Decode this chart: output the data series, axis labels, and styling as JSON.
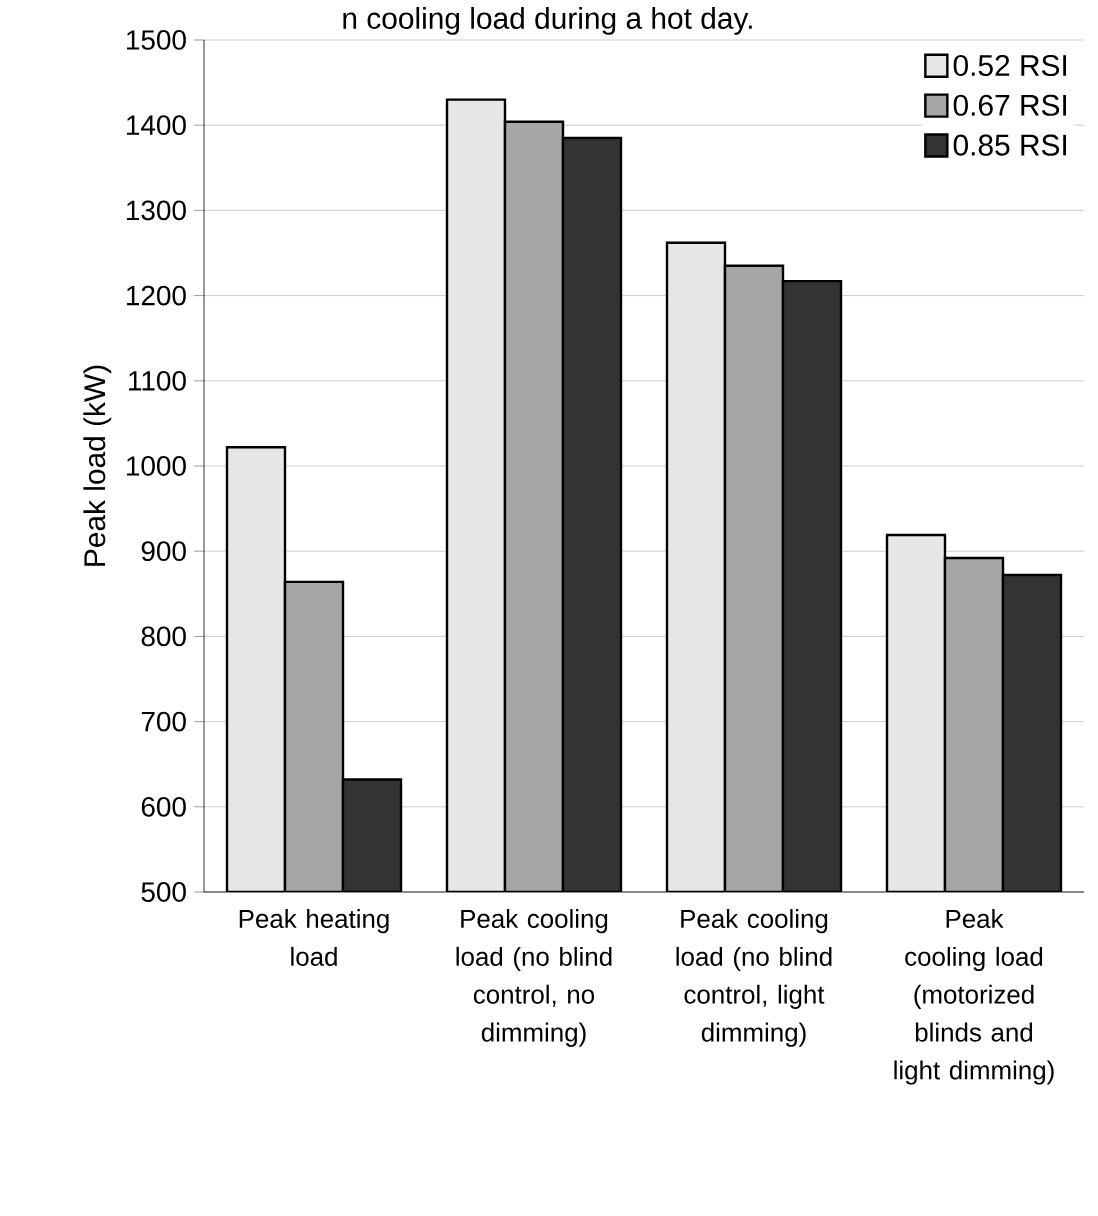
{
  "chart_data": {
    "type": "bar",
    "title": "n cooling load during a hot day.",
    "ylabel": "Peak load (kW)",
    "categories": [
      "Peak heating load",
      "Peak cooling load (no blind control, no dimming)",
      "Peak cooling load (no blind control, light dimming)",
      "Peak cooling load (motorized blinds and light dimming)"
    ],
    "series": [
      {
        "name": "0.52 RSI",
        "color": "#e6e6e6",
        "values": [
          1022,
          1430,
          1262,
          919
        ]
      },
      {
        "name": "0.67 RSI",
        "color": "#a6a6a6",
        "values": [
          864,
          1404,
          1235,
          892
        ]
      },
      {
        "name": "0.85 RSI",
        "color": "#333333",
        "values": [
          632,
          1385,
          1217,
          872
        ]
      }
    ],
    "ylim": [
      500,
      1500
    ],
    "yticks": [
      500,
      600,
      700,
      800,
      900,
      1000,
      1100,
      1200,
      1300,
      1400,
      1500
    ],
    "grid": "y",
    "legend": "top right"
  }
}
